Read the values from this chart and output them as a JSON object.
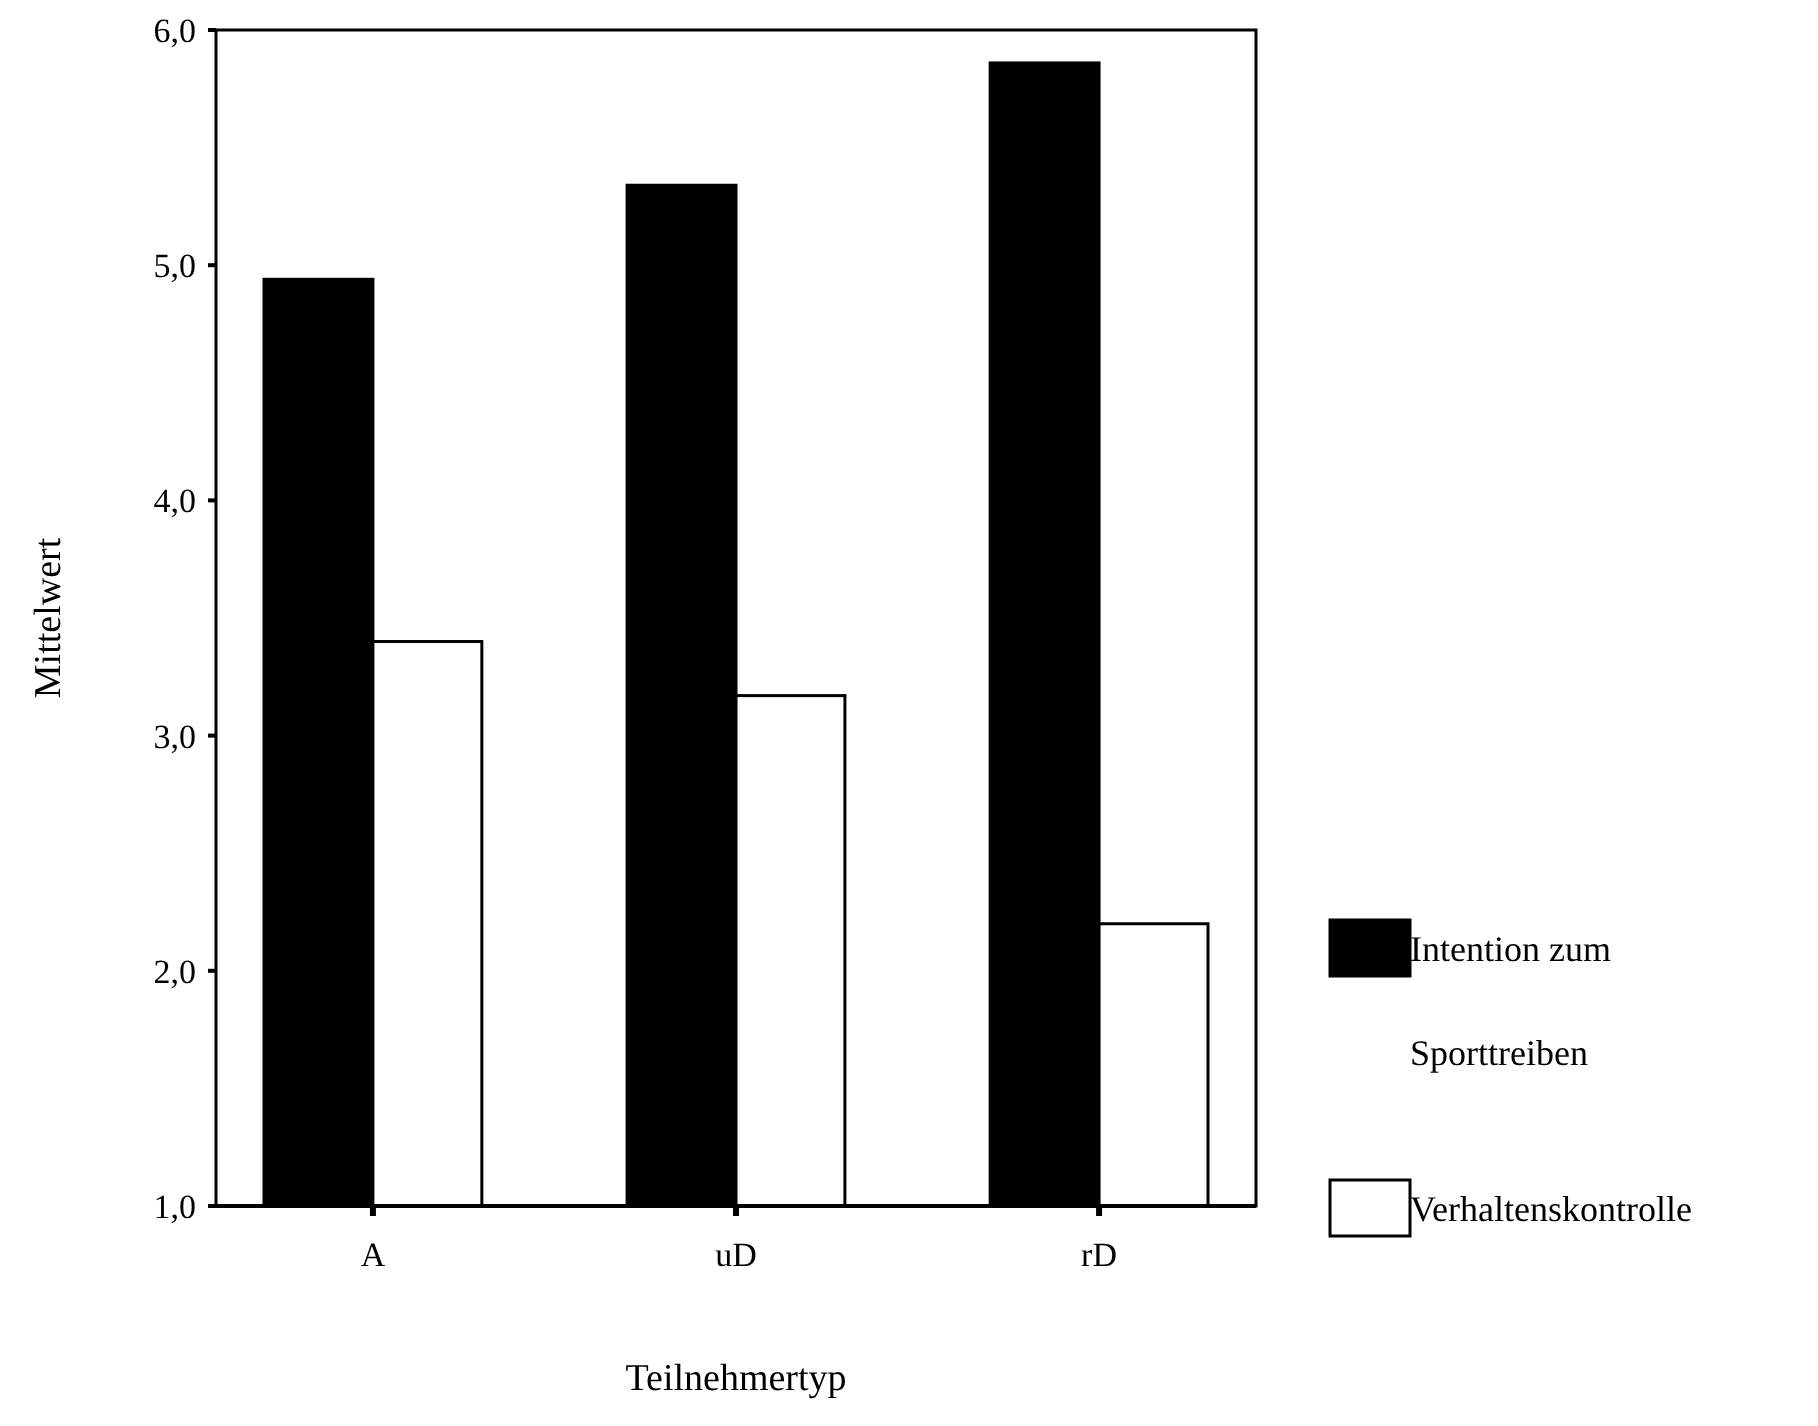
{
  "chart_data": {
    "type": "bar",
    "xlabel": "Teilnehmertyp",
    "ylabel": "Mittelwert",
    "categories": [
      "A",
      "uD",
      "rD"
    ],
    "series": [
      {
        "name": "Intention zum Sporttreiben",
        "color": "#000000",
        "values": [
          4.94,
          5.34,
          5.86
        ]
      },
      {
        "name": "Verhaltenskontrolle",
        "color": "#ffffff",
        "values": [
          3.4,
          3.17,
          2.2
        ]
      }
    ],
    "ylim": [
      1,
      6
    ],
    "yticks": [
      {
        "value": 1,
        "label": "1,0"
      },
      {
        "value": 2,
        "label": "2,0"
      },
      {
        "value": 3,
        "label": "3,0"
      },
      {
        "value": 4,
        "label": "4,0"
      },
      {
        "value": 5,
        "label": "5,0"
      },
      {
        "value": 6,
        "label": "6,0"
      }
    ],
    "grid": false,
    "legend": "right"
  }
}
